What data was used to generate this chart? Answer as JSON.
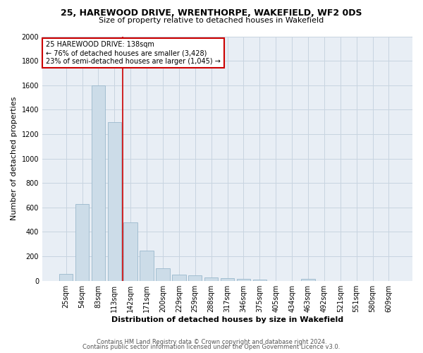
{
  "title1": "25, HAREWOOD DRIVE, WRENTHORPE, WAKEFIELD, WF2 0DS",
  "title2": "Size of property relative to detached houses in Wakefield",
  "xlabel": "Distribution of detached houses by size in Wakefield",
  "ylabel": "Number of detached properties",
  "categories": [
    "25sqm",
    "54sqm",
    "83sqm",
    "113sqm",
    "142sqm",
    "171sqm",
    "200sqm",
    "229sqm",
    "259sqm",
    "288sqm",
    "317sqm",
    "346sqm",
    "375sqm",
    "405sqm",
    "434sqm",
    "463sqm",
    "492sqm",
    "521sqm",
    "551sqm",
    "580sqm",
    "609sqm"
  ],
  "values": [
    55,
    630,
    1600,
    1300,
    480,
    248,
    105,
    52,
    45,
    28,
    20,
    15,
    10,
    0,
    0,
    15,
    0,
    0,
    0,
    0,
    0
  ],
  "bar_color": "#ccdce8",
  "bar_edge_color": "#9ab8cc",
  "vline_color": "#cc0000",
  "annotation_text": "25 HAREWOOD DRIVE: 138sqm\n← 76% of detached houses are smaller (3,428)\n23% of semi-detached houses are larger (1,045) →",
  "annotation_box_color": "#ffffff",
  "annotation_box_edge_color": "#cc0000",
  "ylim": [
    0,
    2000
  ],
  "yticks": [
    0,
    200,
    400,
    600,
    800,
    1000,
    1200,
    1400,
    1600,
    1800,
    2000
  ],
  "grid_color": "#c8d4e0",
  "background_color": "#e8eef5",
  "title1_fontsize": 9,
  "title2_fontsize": 8,
  "ylabel_fontsize": 8,
  "xlabel_fontsize": 8,
  "tick_fontsize": 7,
  "footer1": "Contains HM Land Registry data © Crown copyright and database right 2024.",
  "footer2": "Contains public sector information licensed under the Open Government Licence v3.0.",
  "footer_fontsize": 6,
  "vline_x": 3.5
}
